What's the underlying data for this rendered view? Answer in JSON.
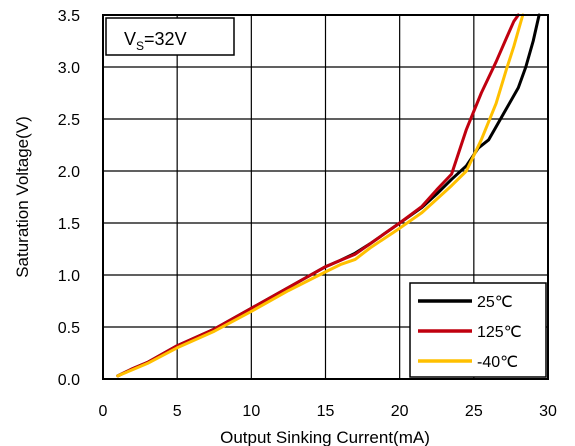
{
  "chart_data": {
    "type": "line",
    "xlabel": "Output Sinking Current(mA)",
    "ylabel": "Saturation Voltage(V)",
    "xlim": [
      0,
      30
    ],
    "ylim": [
      0,
      3.5
    ],
    "x_ticks": [
      "0",
      "5",
      "10",
      "15",
      "20",
      "25",
      "30"
    ],
    "y_ticks": [
      "0.0",
      "0.5",
      "1.0",
      "1.5",
      "2.0",
      "2.5",
      "3.0",
      "3.5"
    ],
    "grid": true,
    "legend_position": "bottom-right",
    "annotation": {
      "main": "V",
      "sub": "S",
      "rest": "=32V"
    },
    "series": [
      {
        "name": "25℃",
        "color": "#000000",
        "x": [
          1.0,
          2.0,
          3.0,
          5.0,
          7.5,
          10.0,
          12.5,
          15.0,
          16.0,
          17.0,
          18.0,
          20.0,
          21.5,
          22.5,
          23.5,
          24.5,
          25.3,
          26.0,
          27.0,
          28.0,
          28.5,
          29.0,
          29.4
        ],
        "y": [
          0.03,
          0.1,
          0.16,
          0.32,
          0.48,
          0.68,
          0.88,
          1.08,
          1.14,
          1.21,
          1.3,
          1.5,
          1.65,
          1.78,
          1.92,
          2.05,
          2.22,
          2.3,
          2.55,
          2.8,
          3.0,
          3.25,
          3.5
        ]
      },
      {
        "name": "125℃",
        "color": "#c0000f",
        "x": [
          1.0,
          2.0,
          3.0,
          5.0,
          7.5,
          10.0,
          12.5,
          15.0,
          16.0,
          17.0,
          18.0,
          20.0,
          21.5,
          22.5,
          23.5,
          24.5,
          25.5,
          26.5,
          27.2,
          27.7,
          28.0
        ],
        "y": [
          0.03,
          0.1,
          0.16,
          0.32,
          0.48,
          0.68,
          0.88,
          1.08,
          1.14,
          1.2,
          1.3,
          1.5,
          1.66,
          1.82,
          1.97,
          2.4,
          2.75,
          3.05,
          3.28,
          3.44,
          3.5
        ]
      },
      {
        "name": "-40℃",
        "color": "#ffc000",
        "x": [
          1.0,
          2.0,
          3.0,
          5.0,
          7.5,
          10.0,
          12.5,
          15.0,
          16.0,
          17.0,
          18.0,
          20.0,
          21.5,
          22.5,
          23.5,
          24.5,
          25.5,
          26.5,
          27.2,
          27.7,
          28.0,
          28.3
        ],
        "y": [
          0.03,
          0.09,
          0.15,
          0.3,
          0.46,
          0.65,
          0.85,
          1.03,
          1.1,
          1.15,
          1.26,
          1.45,
          1.6,
          1.73,
          1.86,
          2.0,
          2.3,
          2.65,
          2.98,
          3.2,
          3.35,
          3.5
        ]
      }
    ]
  }
}
